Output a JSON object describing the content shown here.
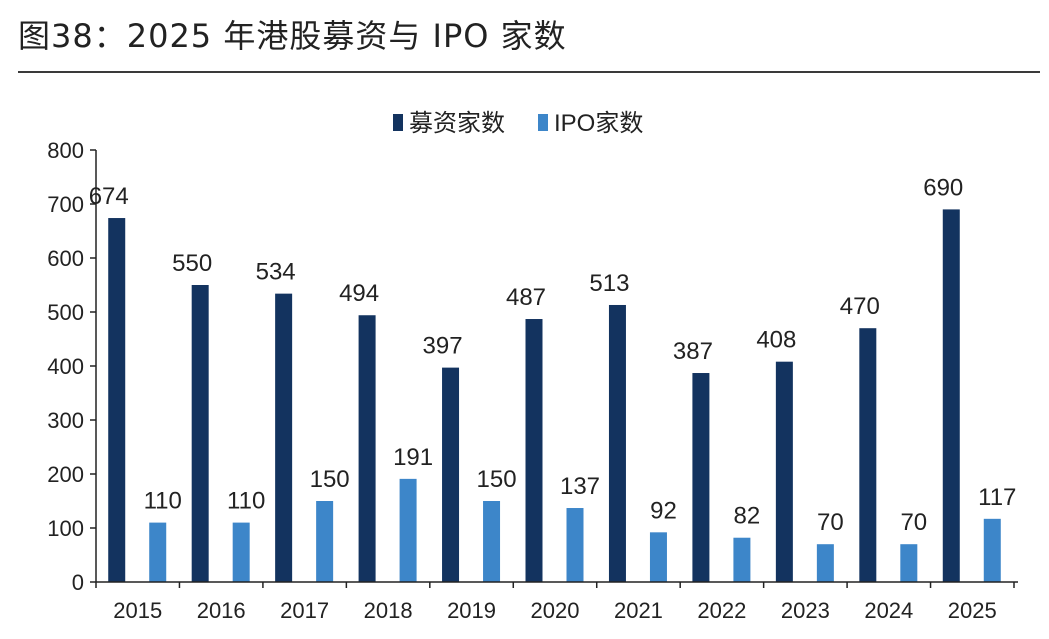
{
  "figure_title": "图38：2025 年港股募资与 IPO 家数",
  "colors": {
    "fundraising": "#13335f",
    "ipo": "#3d86c9",
    "axis": "#222222"
  },
  "chart_data": {
    "type": "bar",
    "title": "图38：2025 年港股募资与 IPO 家数",
    "xlabel": "",
    "ylabel": "",
    "ylim": [
      0,
      800
    ],
    "yticks": [
      0,
      100,
      200,
      300,
      400,
      500,
      600,
      700,
      800
    ],
    "grid": false,
    "legend": "top-center",
    "categories": [
      "2015",
      "2016",
      "2017",
      "2018",
      "2019",
      "2020",
      "2021",
      "2022",
      "2023",
      "2024",
      "2025"
    ],
    "series": [
      {
        "name": "募资家数",
        "color": "#13335f",
        "values": [
          674,
          550,
          534,
          494,
          397,
          487,
          513,
          387,
          408,
          470,
          690
        ]
      },
      {
        "name": "IPO家数",
        "color": "#3d86c9",
        "values": [
          110,
          110,
          150,
          191,
          150,
          137,
          92,
          82,
          70,
          70,
          117
        ]
      }
    ]
  }
}
